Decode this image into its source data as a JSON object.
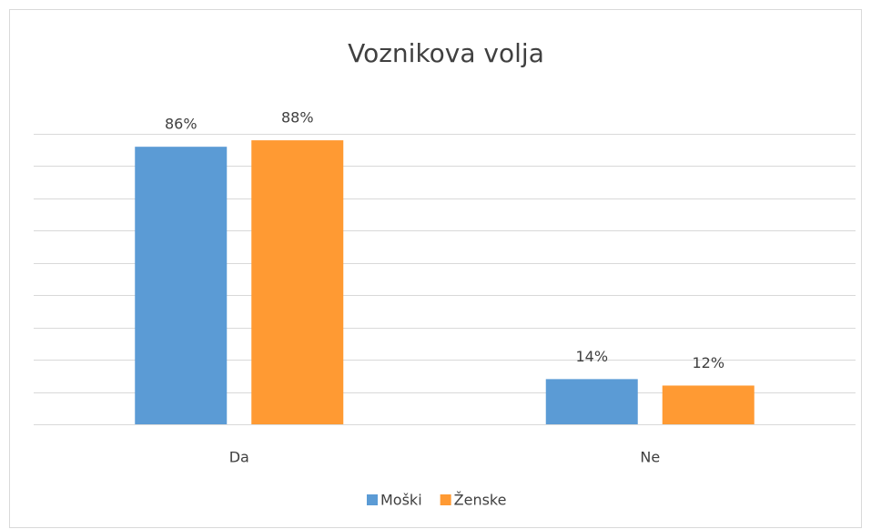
{
  "chart_data": {
    "type": "bar",
    "title": "Voznikova volja",
    "categories": [
      "Da",
      "Ne"
    ],
    "series": [
      {
        "name": "Moški",
        "color": "#5b9bd5",
        "values": [
          86,
          14
        ],
        "value_labels": [
          "86%",
          "14%"
        ]
      },
      {
        "name": "Ženske",
        "color": "#ff9a33",
        "values": [
          88,
          12
        ],
        "value_labels": [
          "88%",
          "12%"
        ]
      }
    ],
    "ylim": [
      0,
      90
    ],
    "yticks": [
      0,
      10,
      20,
      30,
      40,
      50,
      60,
      70,
      80,
      90
    ],
    "grid": true,
    "legend": "bottom"
  }
}
